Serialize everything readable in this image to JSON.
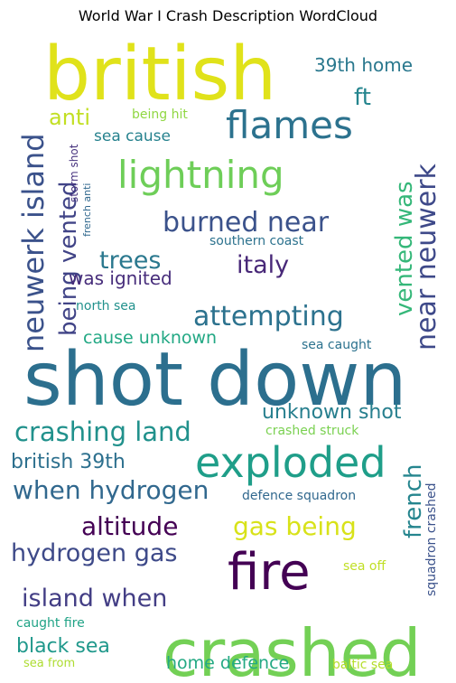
{
  "chart_data": {
    "type": "wordcloud",
    "title": "World War I Crash Description WordCloud",
    "words": [
      {
        "text": "british",
        "weight": 100,
        "color": "#e0e21a"
      },
      {
        "text": "shot down",
        "weight": 100,
        "color": "#2c6f8e"
      },
      {
        "text": "crashed",
        "weight": 88,
        "color": "#73d055"
      },
      {
        "text": "fire",
        "weight": 65,
        "color": "#440154"
      },
      {
        "text": "exploded",
        "weight": 55,
        "color": "#1f9e89"
      },
      {
        "text": "flames",
        "weight": 50,
        "color": "#2c728e"
      },
      {
        "text": "lightning",
        "weight": 50,
        "color": "#6ece58"
      },
      {
        "text": "neuwerk island",
        "weight": 40,
        "color": "#3b528b"
      },
      {
        "text": "burned near",
        "weight": 36,
        "color": "#3b528b"
      },
      {
        "text": "near neuwerk",
        "weight": 36,
        "color": "#3e4989"
      },
      {
        "text": "attempting",
        "weight": 35,
        "color": "#2c728e"
      },
      {
        "text": "crashing land",
        "weight": 35,
        "color": "#21918c"
      },
      {
        "text": "when hydrogen",
        "weight": 34,
        "color": "#31688e"
      },
      {
        "text": "altitude",
        "weight": 34,
        "color": "#440154"
      },
      {
        "text": "gas being",
        "weight": 33,
        "color": "#d8e219"
      },
      {
        "text": "hydrogen gas",
        "weight": 32,
        "color": "#3e4a89"
      },
      {
        "text": "island when",
        "weight": 32,
        "color": "#433e85"
      },
      {
        "text": "italy",
        "weight": 33,
        "color": "#482878"
      },
      {
        "text": "trees",
        "weight": 32,
        "color": "#2a788e"
      },
      {
        "text": "vented was",
        "weight": 31,
        "color": "#35b779"
      },
      {
        "text": "being vented",
        "weight": 31,
        "color": "#414487"
      },
      {
        "text": "french",
        "weight": 31,
        "color": "#25858e"
      },
      {
        "text": "ft",
        "weight": 30,
        "color": "#25858e"
      },
      {
        "text": "anti",
        "weight": 29,
        "color": "#c2df23"
      },
      {
        "text": "unknown shot",
        "weight": 27,
        "color": "#277f8e"
      },
      {
        "text": "british 39th",
        "weight": 27,
        "color": "#2d708e"
      },
      {
        "text": "black sea",
        "weight": 27,
        "color": "#1f988b"
      },
      {
        "text": "39th home",
        "weight": 24,
        "color": "#2a788e"
      },
      {
        "text": "was ignited",
        "weight": 24,
        "color": "#472d7b"
      },
      {
        "text": "cause unknown",
        "weight": 22,
        "color": "#22a884"
      },
      {
        "text": "home defence",
        "weight": 22,
        "color": "#23a983"
      },
      {
        "text": "sea cause",
        "weight": 20,
        "color": "#26828e"
      },
      {
        "text": "defence squadron",
        "weight": 17,
        "color": "#31688e"
      },
      {
        "text": "crashed struck",
        "weight": 17,
        "color": "#7ad151"
      },
      {
        "text": "squadron crashed",
        "weight": 16,
        "color": "#3b528b"
      },
      {
        "text": "southern coast",
        "weight": 17,
        "color": "#2c728e"
      },
      {
        "text": "north sea",
        "weight": 17,
        "color": "#21918c"
      },
      {
        "text": "sea caught",
        "weight": 17,
        "color": "#2c728e"
      },
      {
        "text": "being hit",
        "weight": 16,
        "color": "#90d743"
      },
      {
        "text": "storm shot",
        "weight": 14,
        "color": "#46327e"
      },
      {
        "text": "french anti",
        "weight": 13,
        "color": "#31688e"
      },
      {
        "text": "sea off",
        "weight": 16,
        "color": "#c0df25"
      },
      {
        "text": "caught fire",
        "weight": 16,
        "color": "#20a386"
      },
      {
        "text": "baltic sea",
        "weight": 16,
        "color": "#b5de2b"
      },
      {
        "text": "sea from",
        "weight": 15,
        "color": "#addc30"
      }
    ]
  }
}
